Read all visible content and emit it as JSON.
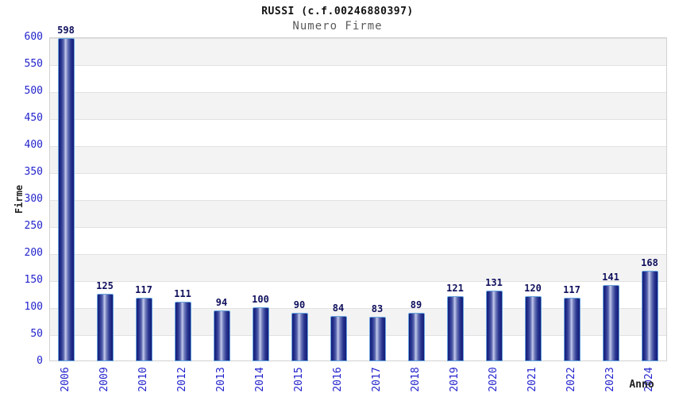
{
  "chart_data": {
    "type": "bar",
    "title": "RUSSI (c.f.00246880397)",
    "subtitle": "Numero Firme",
    "xlabel": "Anno",
    "ylabel": "Firme",
    "categories": [
      "2006",
      "2009",
      "2010",
      "2012",
      "2013",
      "2014",
      "2015",
      "2016",
      "2017",
      "2018",
      "2019",
      "2020",
      "2021",
      "2022",
      "2023",
      "2024"
    ],
    "values": [
      598,
      125,
      117,
      111,
      94,
      100,
      90,
      84,
      83,
      89,
      121,
      131,
      120,
      117,
      141,
      168
    ],
    "ylim": [
      0,
      600
    ],
    "yticks": [
      0,
      50,
      100,
      150,
      200,
      250,
      300,
      350,
      400,
      450,
      500,
      550,
      600
    ],
    "grid": "horizontal gridlines every 50 with alternating gray/white bands",
    "legend": null,
    "bar_value_labels": true,
    "colors": {
      "tick_label": "#2323cd",
      "value_label": "#10105e",
      "bar_dark": "#141c78",
      "bar_light": "#c3c9ec",
      "bar_border": "#66a3dd",
      "band_gray": "#f3f3f3",
      "band_white": "#ffffff",
      "gridline": "#e1e1e1",
      "plot_border": "#d2d2d2",
      "title_color": "#111111",
      "subtitle_color": "#5a5a5a",
      "axis_title_color": "#222222"
    }
  }
}
